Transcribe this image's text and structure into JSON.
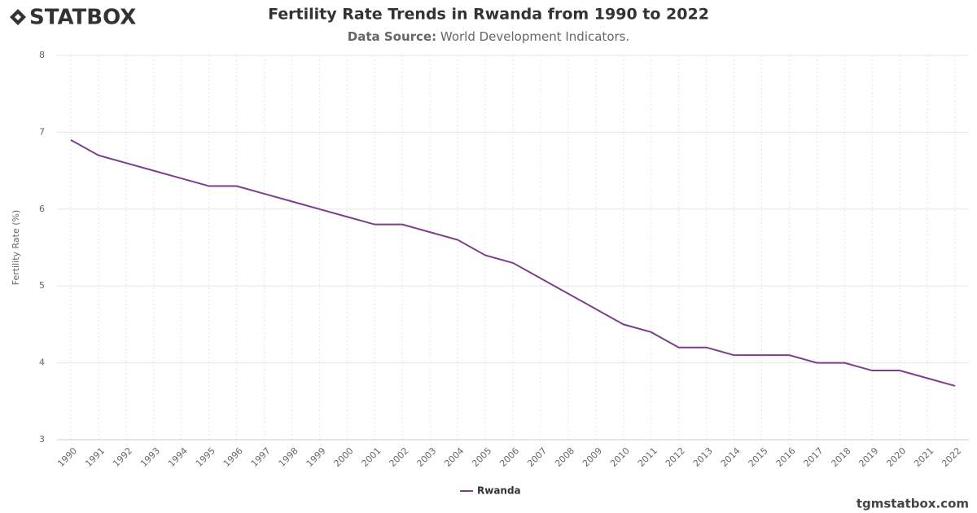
{
  "logo": "STATBOX",
  "footer": "tgmstatbox.com",
  "chart_data": {
    "type": "line",
    "title": "Fertility Rate Trends in Rwanda from 1990 to 2022",
    "subtitle_label": "Data Source:",
    "subtitle": "World Development Indicators.",
    "y_label": "Fertility Rate (%)",
    "categories": [
      "1990",
      "1991",
      "1992",
      "1993",
      "1994",
      "1995",
      "1996",
      "1997",
      "1998",
      "1999",
      "2000",
      "2001",
      "2002",
      "2003",
      "2004",
      "2005",
      "2006",
      "2007",
      "2008",
      "2009",
      "2010",
      "2011",
      "2012",
      "2013",
      "2014",
      "2015",
      "2016",
      "2017",
      "2018",
      "2019",
      "2020",
      "2021",
      "2022"
    ],
    "series": [
      {
        "name": "Rwanda",
        "color": "#7b3f8c",
        "values": [
          6.9,
          6.7,
          6.6,
          6.5,
          6.4,
          6.3,
          6.3,
          6.2,
          6.1,
          6.0,
          5.9,
          5.8,
          5.8,
          5.7,
          5.6,
          5.4,
          5.3,
          5.1,
          4.9,
          4.7,
          4.5,
          4.4,
          4.2,
          4.2,
          4.1,
          4.1,
          4.1,
          4.0,
          4.0,
          3.9,
          3.9,
          3.8,
          3.7
        ]
      }
    ],
    "ylim": [
      3,
      8
    ],
    "yticks": [
      3,
      4,
      5,
      6,
      7,
      8
    ],
    "grid": true
  }
}
